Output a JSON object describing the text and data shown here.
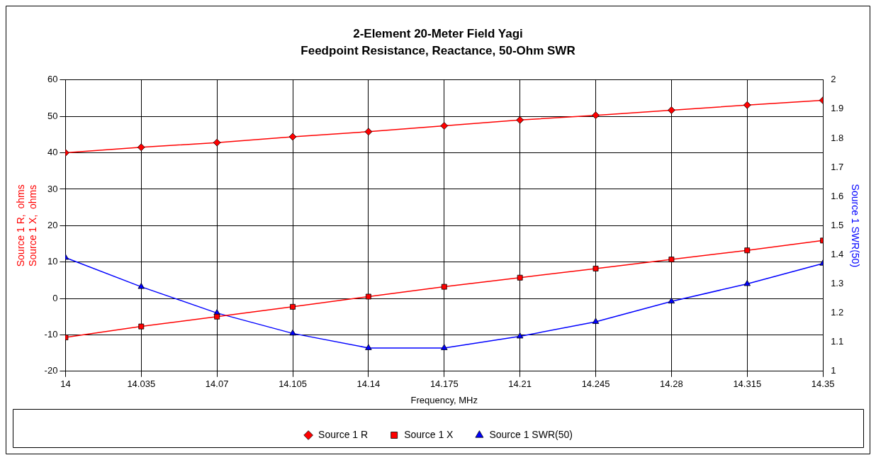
{
  "chart_data": {
    "type": "line",
    "title": "2-Element 20-Meter Field Yagi",
    "subtitle": "Feedpoint Resistance, Reactance, 50-Ohm SWR",
    "xlabel": "Frequency, MHz",
    "ylabel": "Source 1 R,  ohms\nSource 1 X,  ohms",
    "y2label": "Source 1 SWR(50)",
    "x": [
      14,
      14.035,
      14.07,
      14.105,
      14.14,
      14.175,
      14.21,
      14.245,
      14.28,
      14.315,
      14.35
    ],
    "xlim": [
      14,
      14.35
    ],
    "xticks": [
      14,
      14.035,
      14.07,
      14.105,
      14.14,
      14.175,
      14.21,
      14.245,
      14.28,
      14.315,
      14.35
    ],
    "ylim": [
      -20,
      60
    ],
    "yticks": [
      -20,
      -10,
      0,
      10,
      20,
      30,
      40,
      50,
      60
    ],
    "y2lim": [
      1,
      2
    ],
    "y2ticks": [
      1,
      1.1,
      1.2,
      1.3,
      1.4,
      1.5,
      1.6,
      1.7,
      1.8,
      1.9,
      2
    ],
    "grid": true,
    "legend": "bottom",
    "line_style": "solid",
    "series": [
      {
        "name": "Source 1 R",
        "color": "#ff0000",
        "marker": "diamond",
        "values": [
          40,
          41.5,
          42.8,
          44.4,
          45.8,
          47.4,
          49,
          50.3,
          51.7,
          53.1,
          54.4
        ]
      },
      {
        "name": "Source 1 X",
        "color": "#ff0000",
        "marker": "square",
        "values": [
          -10.7,
          -7.7,
          -5,
          -2.3,
          0.5,
          3.2,
          5.7,
          8.2,
          10.7,
          13.2,
          15.9
        ]
      },
      {
        "name": "Source 1 SWR(50)",
        "color": "#0000ff",
        "marker": "triangle",
        "axis": "y2",
        "values": [
          1.39,
          1.29,
          1.2,
          1.13,
          1.08,
          1.08,
          1.12,
          1.17,
          1.24,
          1.3,
          1.37
        ]
      }
    ]
  }
}
